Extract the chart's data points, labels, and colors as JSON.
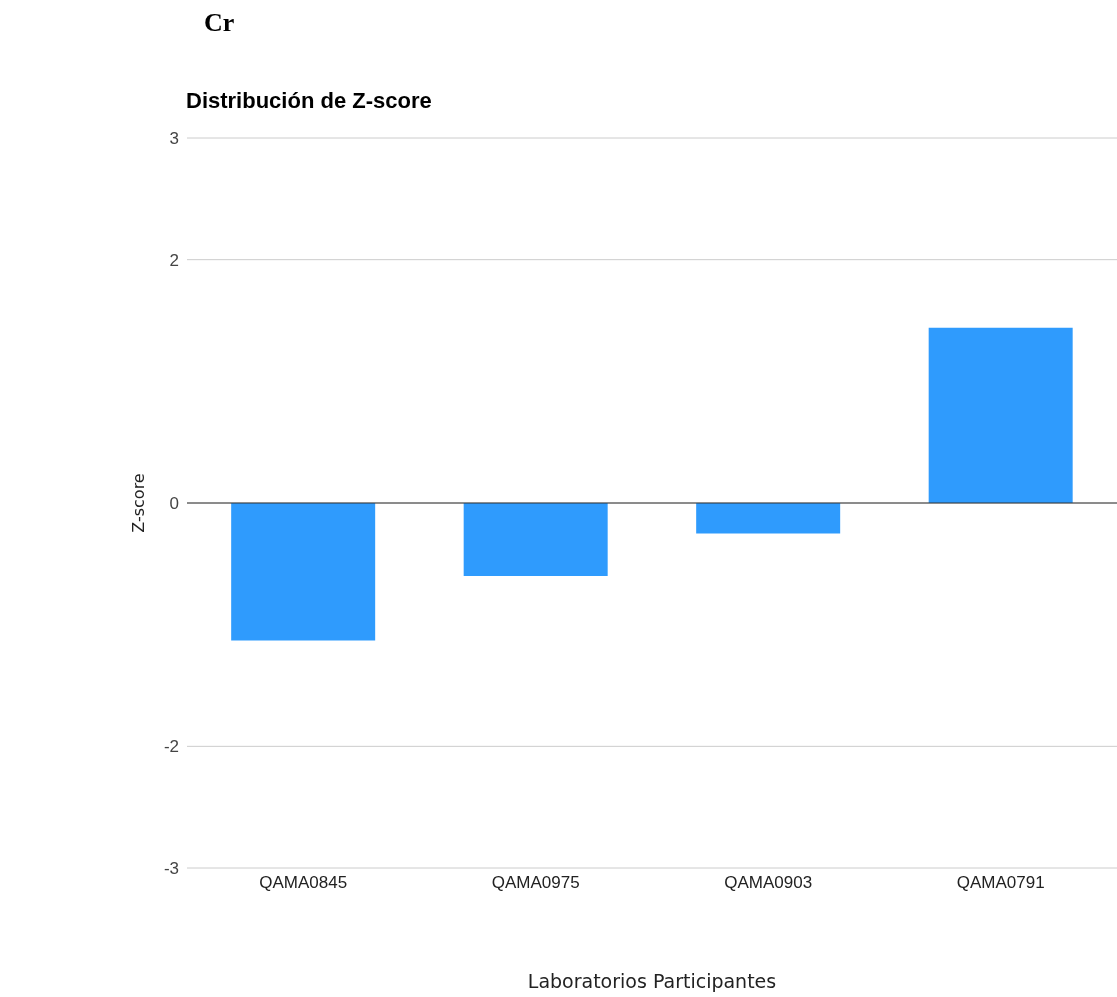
{
  "chart_data": {
    "type": "bar",
    "title": "Cr",
    "subtitle": "Distribución de Z-score",
    "xlabel": "Laboratorios Participantes",
    "ylabel": "Z-score",
    "categories": [
      "QAMA0845",
      "QAMA0975",
      "QAMA0903",
      "QAMA0791"
    ],
    "values": [
      -1.13,
      -0.6,
      -0.25,
      1.44
    ],
    "color": "#2f9bfd",
    "ylim": [
      -3,
      3
    ],
    "yticks": [
      -3,
      -2,
      0,
      2,
      3
    ],
    "grid": "y",
    "ref_lines": [
      {
        "axis": "y",
        "value": 0,
        "color": "#333333"
      }
    ]
  }
}
